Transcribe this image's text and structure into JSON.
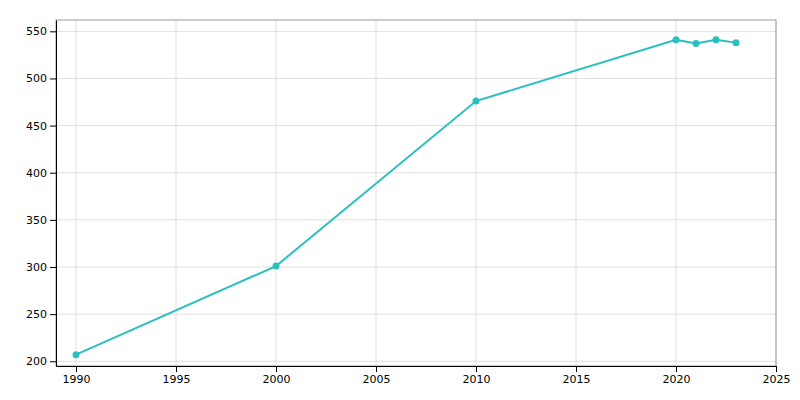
{
  "chart_data": {
    "type": "line",
    "x": [
      1990,
      2000,
      2010,
      2020,
      2021,
      2022,
      2023
    ],
    "values": [
      207,
      301,
      476,
      541,
      537,
      541,
      538
    ],
    "color": "#2bbfbf",
    "marker": "circle",
    "xlim": [
      1989,
      2025
    ],
    "ylim": [
      195,
      562
    ],
    "xticks": [
      1990,
      1995,
      2000,
      2005,
      2010,
      2015,
      2020,
      2025
    ],
    "yticks": [
      200,
      250,
      300,
      350,
      400,
      450,
      500,
      550
    ],
    "grid": true
  }
}
